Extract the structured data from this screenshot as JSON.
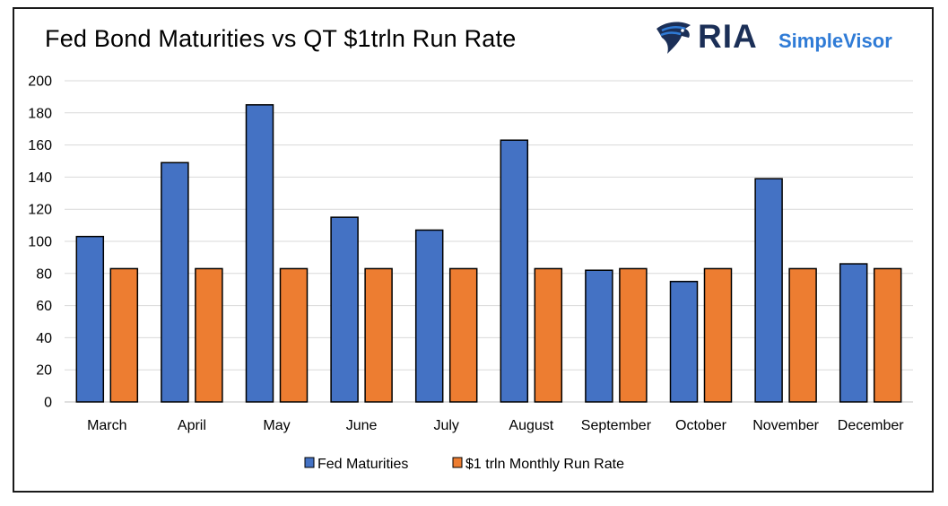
{
  "header": {
    "title": "Fed Bond Maturities vs QT $1trln Run Rate"
  },
  "logo": {
    "brand": "RIA",
    "product": "SimpleVisor",
    "icon": "eagle-head-icon",
    "colors": {
      "brand": "#1b2f57",
      "product": "#2f7bd6"
    }
  },
  "colors": {
    "fed_maturities": "#4472C4",
    "run_rate": "#ED7D31",
    "bar_outline": "#000000",
    "gridline": "#d9d9d9"
  },
  "chart_data": {
    "type": "bar",
    "title": "Fed Bond Maturities vs QT $1trln Run Rate",
    "xlabel": "",
    "ylabel": "",
    "ylim": [
      0,
      200
    ],
    "yticks": [
      0,
      20,
      40,
      60,
      80,
      100,
      120,
      140,
      160,
      180,
      200
    ],
    "categories": [
      "March",
      "April",
      "May",
      "June",
      "July",
      "August",
      "September",
      "October",
      "November",
      "December"
    ],
    "series": [
      {
        "name": "Fed Maturities",
        "values": [
          103,
          149,
          185,
          115,
          107,
          163,
          82,
          75,
          139,
          86
        ]
      },
      {
        "name": "$1 trln Monthly Run Rate",
        "values": [
          83,
          83,
          83,
          83,
          83,
          83,
          83,
          83,
          83,
          83
        ]
      }
    ],
    "grid": true,
    "legend_position": "bottom"
  }
}
